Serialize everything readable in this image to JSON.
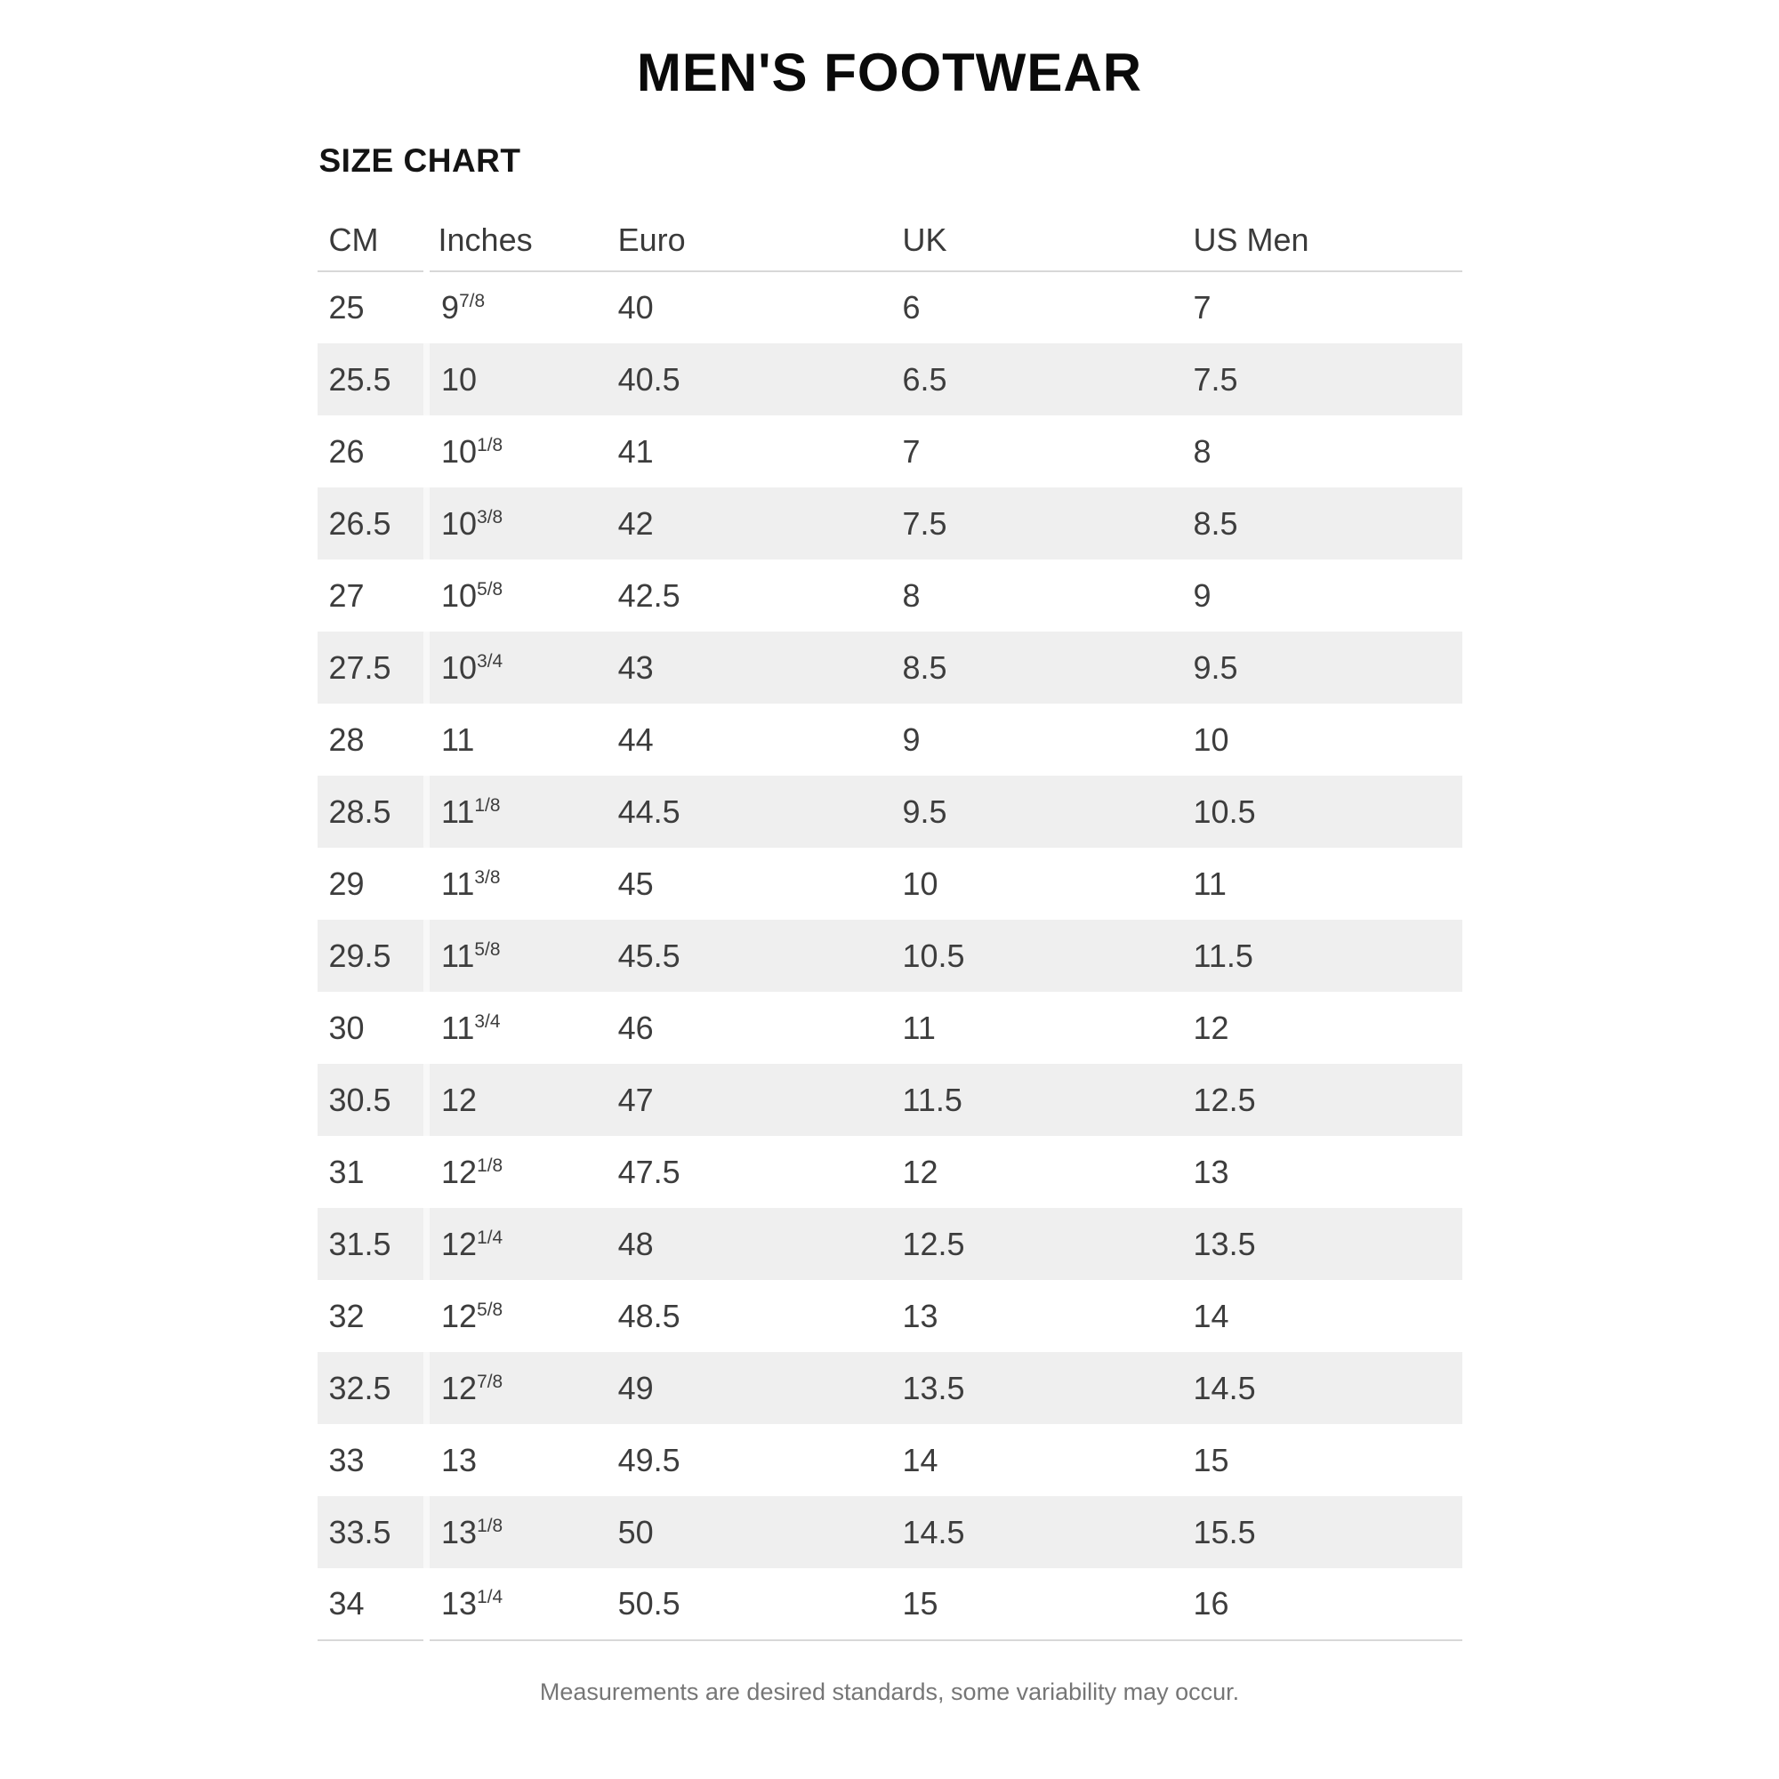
{
  "page": {
    "background": "#ffffff"
  },
  "chart_data": {
    "type": "table",
    "title": "MEN'S FOOTWEAR",
    "subtitle": "SIZE CHART",
    "columns": [
      "CM",
      "Inches",
      "Euro",
      "UK",
      "US Men"
    ],
    "rows": [
      [
        "25",
        "9 7/8",
        "40",
        "6",
        "7"
      ],
      [
        "25.5",
        "10",
        "40.5",
        "6.5",
        "7.5"
      ],
      [
        "26",
        "10 1/8",
        "41",
        "7",
        "8"
      ],
      [
        "26.5",
        "10 3/8",
        "42",
        "7.5",
        "8.5"
      ],
      [
        "27",
        "10 5/8",
        "42.5",
        "8",
        "9"
      ],
      [
        "27.5",
        "10 3/4",
        "43",
        "8.5",
        "9.5"
      ],
      [
        "28",
        "11",
        "44",
        "9",
        "10"
      ],
      [
        "28.5",
        "11 1/8",
        "44.5",
        "9.5",
        "10.5"
      ],
      [
        "29",
        "11 3/8",
        "45",
        "10",
        "11"
      ],
      [
        "29.5",
        "11 5/8",
        "45.5",
        "10.5",
        "11.5"
      ],
      [
        "30",
        "11 3/4",
        "46",
        "11",
        "12"
      ],
      [
        "30.5",
        "12",
        "47",
        "11.5",
        "12.5"
      ],
      [
        "31",
        "12 1/8",
        "47.5",
        "12",
        "13"
      ],
      [
        "31.5",
        "12 1/4",
        "48",
        "12.5",
        "13.5"
      ],
      [
        "32",
        "12 5/8",
        "48.5",
        "13",
        "14"
      ],
      [
        "32.5",
        "12 7/8",
        "49",
        "13.5",
        "14.5"
      ],
      [
        "33",
        "13",
        "49.5",
        "14",
        "15"
      ],
      [
        "33.5",
        "13 1/8",
        "50",
        "14.5",
        "15.5"
      ],
      [
        "34",
        "13 1/4",
        "50.5",
        "15",
        "16"
      ]
    ],
    "footnote": "Measurements are desired standards, some variability may occur.",
    "layout_hints": {
      "striped_rows": "even rows shaded",
      "header_divider": true,
      "bottom_divider": true
    }
  },
  "colors": {
    "stripe": "#efefef",
    "divider": "#d8d8d8",
    "cell_text": "#3d3d3d",
    "title_text": "#0a0a0a",
    "footnote_text": "#767676"
  }
}
